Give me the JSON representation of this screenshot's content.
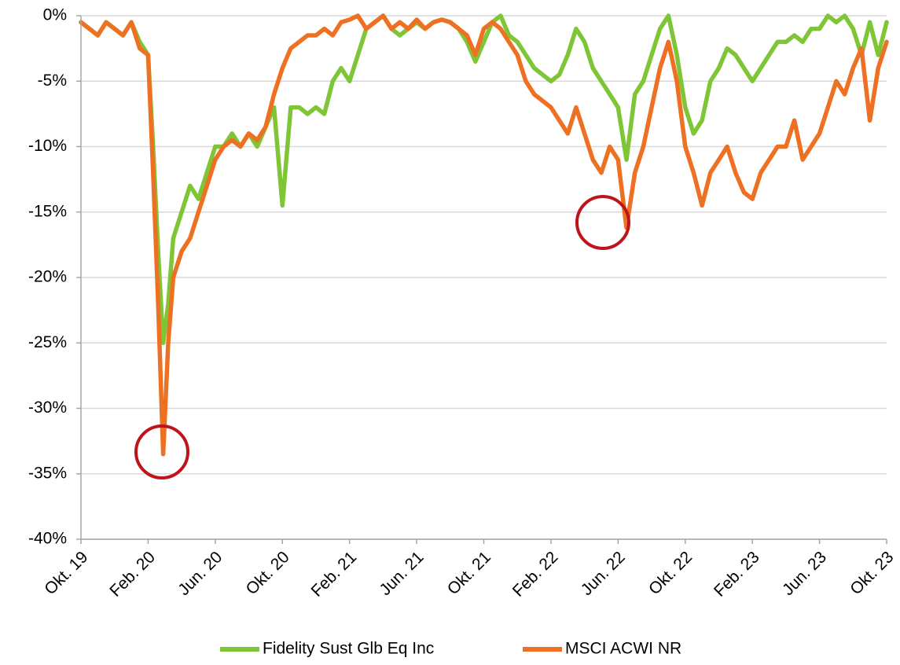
{
  "chart_data": {
    "type": "line",
    "x": [
      0,
      0.5,
      1,
      1.5,
      2,
      2.5,
      3,
      3.5,
      4,
      4.3,
      4.6,
      4.9,
      5.2,
      5.5,
      6,
      6.5,
      7,
      7.5,
      8,
      8.5,
      9,
      9.5,
      10,
      10.5,
      11,
      11.5,
      12,
      12.5,
      13,
      13.5,
      14,
      14.5,
      15,
      15.5,
      16,
      16.5,
      17,
      17.5,
      18,
      18.5,
      19,
      19.5,
      20,
      20.5,
      21,
      21.5,
      22,
      22.5,
      23,
      23.5,
      24,
      24.5,
      25,
      25.5,
      26,
      26.5,
      27,
      27.5,
      28,
      28.5,
      29,
      29.5,
      30,
      30.5,
      31,
      31.5,
      32,
      32.5,
      33,
      33.5,
      34,
      34.5,
      35,
      35.5,
      36,
      36.5,
      37,
      37.5,
      38,
      38.5,
      39,
      39.5,
      40,
      40.5,
      41,
      41.5,
      42,
      42.5,
      43,
      43.5,
      44,
      44.5,
      45,
      45.5,
      46,
      46.5,
      47,
      47.5,
      48
    ],
    "series": [
      {
        "name": "Fidelity Sust Glb Eq Inc",
        "color": "#7ec636",
        "values": [
          -0.5,
          -1,
          -1.5,
          -0.5,
          -1,
          -1.5,
          -0.5,
          -2,
          -3,
          -10,
          -18,
          -25,
          -22,
          -17,
          -15,
          -13,
          -14,
          -12,
          -10,
          -10,
          -9,
          -10,
          -9,
          -10,
          -8.5,
          -7,
          -14.5,
          -7,
          -7,
          -7.5,
          -7,
          -7.5,
          -5,
          -4,
          -5,
          -3,
          -1,
          -0.5,
          0,
          -1,
          -1.5,
          -1,
          -0.5,
          -1,
          -0.5,
          -0.3,
          -0.5,
          -1,
          -2,
          -3.5,
          -2,
          -0.5,
          0,
          -1.5,
          -2,
          -3,
          -4,
          -4.5,
          -5,
          -4.5,
          -3,
          -1,
          -2,
          -4,
          -5,
          -6,
          -7,
          -11,
          -6,
          -5,
          -3,
          -1,
          0,
          -3,
          -7,
          -9,
          -8,
          -5,
          -4,
          -2.5,
          -3,
          -4,
          -5,
          -4,
          -3,
          -2,
          -2,
          -1.5,
          -2,
          -1,
          -1,
          0,
          -0.5,
          0,
          -1,
          -3,
          -0.5,
          -3,
          -0.5
        ]
      },
      {
        "name": "MSCI ACWI NR",
        "color": "#ee7023",
        "values": [
          -0.5,
          -1,
          -1.5,
          -0.5,
          -1,
          -1.5,
          -0.5,
          -2.5,
          -3,
          -12,
          -22,
          -33.5,
          -25,
          -20,
          -18,
          -17,
          -15,
          -13,
          -11,
          -10,
          -9.5,
          -10,
          -9,
          -9.5,
          -8.5,
          -6,
          -4,
          -2.5,
          -2,
          -1.5,
          -1.5,
          -1,
          -1.5,
          -0.5,
          -0.3,
          0,
          -1,
          -0.5,
          0,
          -1,
          -0.5,
          -1,
          -0.3,
          -1,
          -0.5,
          -0.3,
          -0.5,
          -1,
          -1.5,
          -3,
          -1,
          -0.5,
          -1,
          -2,
          -3,
          -5,
          -6,
          -6.5,
          -7,
          -8,
          -9,
          -7,
          -9,
          -11,
          -12,
          -10,
          -11,
          -16.2,
          -12,
          -10,
          -7,
          -4,
          -2,
          -5,
          -10,
          -12,
          -14.5,
          -12,
          -11,
          -10,
          -12,
          -13.5,
          -14,
          -12,
          -11,
          -10,
          -10,
          -8,
          -11,
          -10,
          -9,
          -7,
          -5,
          -6,
          -4,
          -2.5,
          -8,
          -4,
          -2
        ]
      }
    ],
    "xlim": [
      0,
      48
    ],
    "xticks": [
      {
        "value": 0,
        "label": "Okt. 19"
      },
      {
        "value": 4,
        "label": "Feb. 20"
      },
      {
        "value": 8,
        "label": "Jun. 20"
      },
      {
        "value": 12,
        "label": "Okt. 20"
      },
      {
        "value": 16,
        "label": "Feb. 21"
      },
      {
        "value": 20,
        "label": "Jun. 21"
      },
      {
        "value": 24,
        "label": "Okt. 21"
      },
      {
        "value": 28,
        "label": "Feb. 22"
      },
      {
        "value": 32,
        "label": "Jun. 22"
      },
      {
        "value": 36,
        "label": "Okt. 22"
      },
      {
        "value": 40,
        "label": "Feb. 23"
      },
      {
        "value": 44,
        "label": "Jun. 23"
      },
      {
        "value": 48,
        "label": "Okt. 23"
      }
    ],
    "ylim": [
      -40,
      0
    ],
    "yticks": [
      {
        "value": 0,
        "label": "0%"
      },
      {
        "value": -5,
        "label": "-5%"
      },
      {
        "value": -10,
        "label": "-10%"
      },
      {
        "value": -15,
        "label": "-15%"
      },
      {
        "value": -20,
        "label": "-20%"
      },
      {
        "value": -25,
        "label": "-25%"
      },
      {
        "value": -30,
        "label": "-30%"
      },
      {
        "value": -35,
        "label": "-35%"
      },
      {
        "value": -40,
        "label": "-40%"
      }
    ],
    "grid": true,
    "legend": "bottom"
  }
}
